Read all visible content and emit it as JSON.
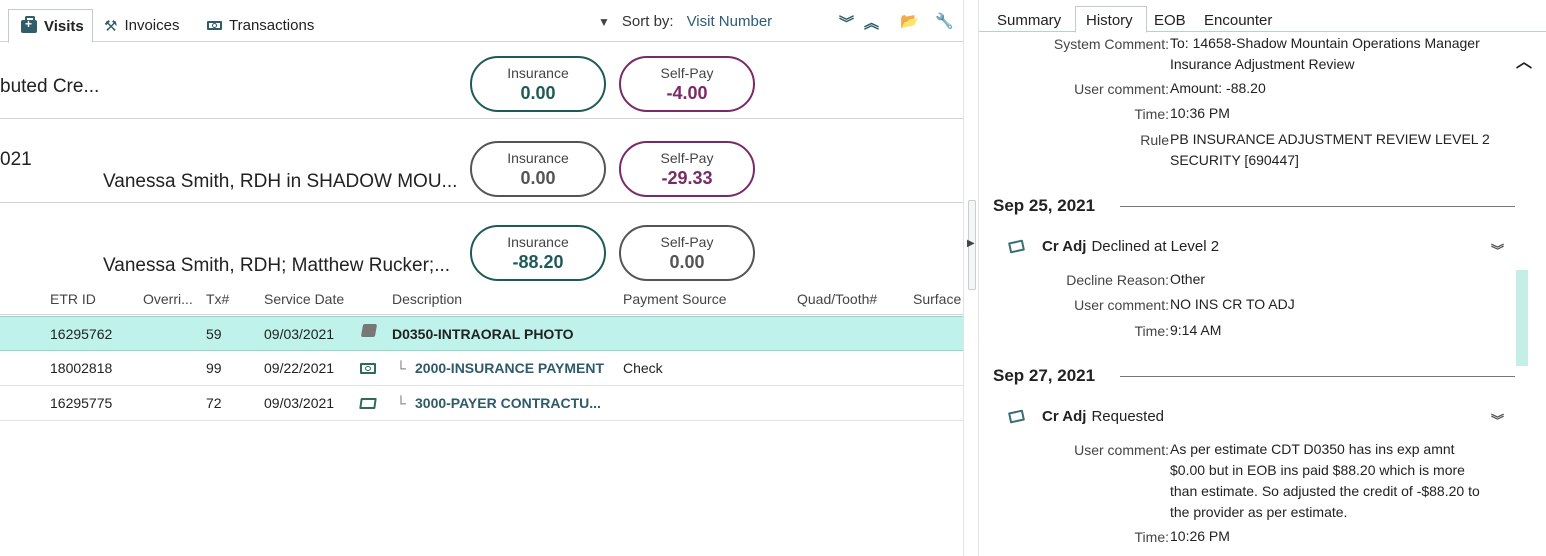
{
  "left": {
    "tabs": [
      {
        "label": "Visits",
        "icon": "briefcase-icon",
        "active": true
      },
      {
        "label": "Invoices",
        "icon": "hammer-icon",
        "active": false
      },
      {
        "label": "Transactions",
        "icon": "bill-icon",
        "active": false
      }
    ],
    "sort": {
      "label": "Sort by:",
      "value": "Visit Number"
    },
    "visits": [
      {
        "line1": "buted Cre...",
        "line2": "",
        "insurance_label": "Insurance",
        "insurance": "0.00",
        "selfpay_label": "Self-Pay",
        "selfpay": "-4.00"
      },
      {
        "line1": "021",
        "line2": "Vanessa Smith, RDH in SHADOW MOU...",
        "insurance_label": "Insurance",
        "insurance": "0.00",
        "selfpay_label": "Self-Pay",
        "selfpay": "-29.33"
      },
      {
        "line1": "",
        "line2": "Vanessa Smith, RDH; Matthew Rucker;...",
        "insurance_label": "Insurance",
        "insurance": "-88.20",
        "selfpay_label": "Self-Pay",
        "selfpay": "0.00"
      }
    ],
    "columns": [
      "ETR ID",
      "Overri...",
      "Tx#",
      "Service Date",
      "Description",
      "Payment Source",
      "Quad/Tooth#",
      "Surface"
    ],
    "transactions": [
      {
        "etr_id": "16295762",
        "tx": "59",
        "service_date": "09/03/2021",
        "tree": "",
        "description": "D0350-INTRAORAL PHOTO",
        "payment_source": "",
        "icon": "photo-icon"
      },
      {
        "etr_id": "18002818",
        "tx": "99",
        "service_date": "09/22/2021",
        "tree": "└",
        "description": "2000-INSURANCE PAYMENT",
        "payment_source": "Check",
        "icon": "payment-icon"
      },
      {
        "etr_id": "16295775",
        "tx": "72",
        "service_date": "09/03/2021",
        "tree": "└",
        "description": "3000-PAYER CONTRACTU...",
        "payment_source": "",
        "icon": "adjustment-icon"
      }
    ]
  },
  "right": {
    "tabs": [
      "Summary",
      "History",
      "EOB",
      "Encounter"
    ],
    "active_tab": "History",
    "top_entry": {
      "system_comment_label": "System Comment:",
      "system_comment_1": "To: 14658-Shadow Mountain Operations Manager",
      "system_comment_2": "Insurance Adjustment Review",
      "user_comment_label": "User comment:",
      "user_comment": "Amount: -88.20",
      "time_label": "Time:",
      "time": "10:36 PM",
      "rule_label": "Rule",
      "rule_1": "PB INSURANCE ADJUSTMENT REVIEW LEVEL 2",
      "rule_2": "SECURITY [690447]"
    },
    "groups": [
      {
        "date": "Sep 25, 2021",
        "event_bold": "Cr Adj",
        "event_rest": "Declined at Level 2",
        "decline_label": "Decline Reason:",
        "decline": "Other",
        "user_comment_label": "User comment:",
        "user_comment": "NO INS CR TO ADJ",
        "time_label": "Time:",
        "time": "9:14 AM"
      },
      {
        "date": "Sep 27, 2021",
        "event_bold": "Cr Adj",
        "event_rest": "Requested",
        "user_comment_label": "User comment:",
        "user_comment_lines": [
          "As per estimate CDT D0350 has ins exp amnt",
          "$0.00 but in EOB ins paid $88.20 which is more",
          "than estimate. So adjusted the credit of -$88.20 to",
          "the provider as per estimate."
        ],
        "time_label": "Time:",
        "time": "10:26 PM"
      }
    ]
  },
  "colors": {
    "insurance": "#1e5a58",
    "selfpay": "#7b2a68",
    "selected_row": "#bff2ea",
    "link": "#2d5b7a"
  }
}
